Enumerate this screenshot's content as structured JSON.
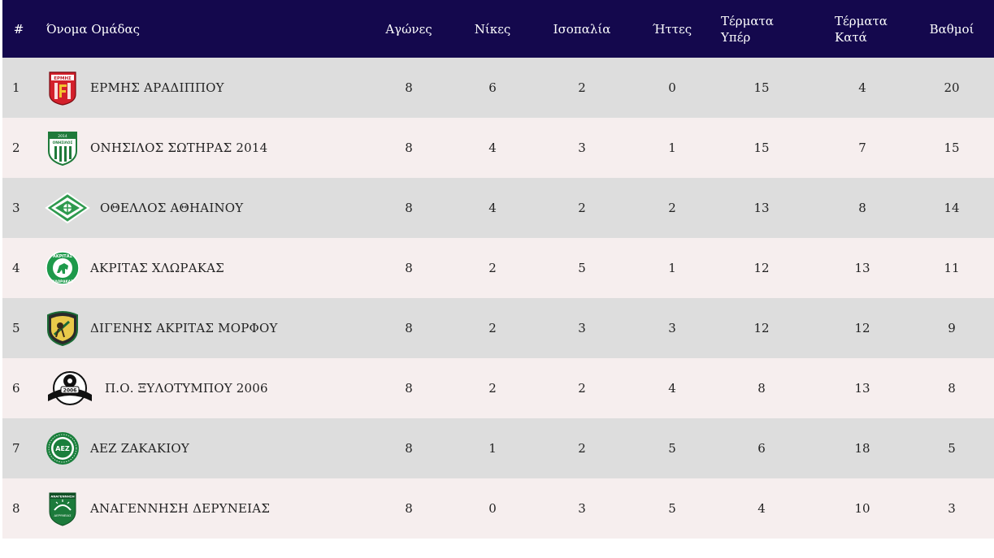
{
  "header": {
    "pos": "#",
    "team": "Όνομα Ομάδας",
    "played": "Αγώνες",
    "wins": "Νίκες",
    "draws": "Ισοπαλία",
    "losses": "Ήττες",
    "gf_1": "Τέρματα",
    "gf_2": "Υπέρ",
    "ga_1": "Τέρματα",
    "ga_2": "Κατά",
    "points": "Βαθμοί"
  },
  "rows": [
    {
      "pos": "1",
      "team": "ΕΡΜΗΣ ΑΡΑΔΙΠΠΟΥ",
      "crest_text": "ΕΡΜΗΣ",
      "played": "8",
      "wins": "6",
      "draws": "2",
      "losses": "0",
      "gf": "15",
      "ga": "4",
      "points": "20",
      "crest": "hermes-crest-icon"
    },
    {
      "pos": "2",
      "team": "ΟΝΗΣΙΛΟΣ ΣΩΤΗΡΑΣ 2014",
      "crest_text": "ΟΝΗΣΙΛΟΣ",
      "crest_year": "2014",
      "played": "8",
      "wins": "4",
      "draws": "3",
      "losses": "1",
      "gf": "15",
      "ga": "7",
      "points": "15",
      "crest": "onisilos-crest-icon"
    },
    {
      "pos": "3",
      "team": "ΟΘΕΛΛΟΣ ΑΘΗΑΙΝΟΥ",
      "played": "8",
      "wins": "4",
      "draws": "2",
      "losses": "2",
      "gf": "13",
      "ga": "8",
      "points": "14",
      "crest": "othellos-crest-icon"
    },
    {
      "pos": "4",
      "team": "ΑΚΡΙΤΑΣ ΧΛΩΡΑΚΑΣ",
      "crest_text": "ΑΚΡΙΤΑΣ",
      "crest_sub": "ΧΛΩΡΑΚΑΣ",
      "played": "8",
      "wins": "2",
      "draws": "5",
      "losses": "1",
      "gf": "12",
      "ga": "13",
      "points": "11",
      "crest": "akritas-crest-icon"
    },
    {
      "pos": "5",
      "team": "ΔΙΓΕΝΗΣ ΑΚΡΙΤΑΣ ΜΟΡΦΟΥ",
      "played": "8",
      "wins": "2",
      "draws": "3",
      "losses": "3",
      "gf": "12",
      "ga": "12",
      "points": "9",
      "crest": "digenis-crest-icon"
    },
    {
      "pos": "6",
      "team": "Π.Ο. ΞΥΛΟΤΥΜΠΟΥ 2006",
      "crest_year": "2006",
      "played": "8",
      "wins": "2",
      "draws": "2",
      "losses": "4",
      "gf": "8",
      "ga": "13",
      "points": "8",
      "crest": "xylotymbou-crest-icon"
    },
    {
      "pos": "7",
      "team": "ΑΕΖ ΖΑΚΑΚΙΟΥ",
      "crest_text": "ΑΕΖ",
      "played": "8",
      "wins": "1",
      "draws": "2",
      "losses": "5",
      "gf": "6",
      "ga": "18",
      "points": "5",
      "crest": "aez-crest-icon"
    },
    {
      "pos": "8",
      "team": "ΑΝΑΓΕΝΝΗΣΗ ΔΕΡΥΝΕΙΑΣ",
      "crest_text": "ΑΝΑΓΕΝΝΗΣΗ",
      "crest_sub": "ΔΕΡΥΝΕΙΑΣ",
      "played": "8",
      "wins": "0",
      "draws": "3",
      "losses": "5",
      "gf": "4",
      "ga": "10",
      "points": "3",
      "crest": "anagennisi-crest-icon"
    }
  ],
  "colors": {
    "header_bg": "#14084d",
    "row_odd": "#dddddd",
    "row_even": "#f6eeee"
  }
}
